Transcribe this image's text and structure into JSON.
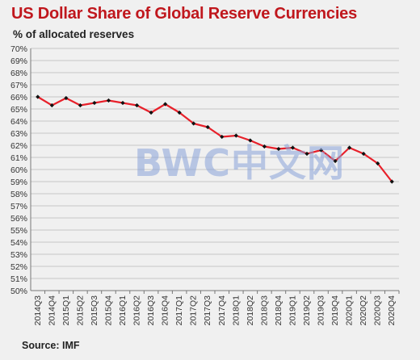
{
  "watermark": "BWC中文网",
  "chart_data": {
    "type": "line",
    "title": "US Dollar Share of Global  Reserve Currencies",
    "subtitle": "% of allocated reserves",
    "source": "Source: IMF",
    "xlabel": "",
    "ylabel": "",
    "ylim": [
      50,
      70
    ],
    "y_ticks": [
      "70%",
      "69%",
      "68%",
      "67%",
      "66%",
      "65%",
      "64%",
      "63%",
      "62%",
      "61%",
      "60%",
      "59%",
      "58%",
      "57%",
      "56%",
      "55%",
      "54%",
      "53%",
      "52%",
      "51%",
      "50%"
    ],
    "grid": true,
    "categories": [
      "2014Q3",
      "2014Q4",
      "2015Q1",
      "2015Q2",
      "2015Q3",
      "2015Q4",
      "2016Q1",
      "2016Q2",
      "2016Q3",
      "2016Q4",
      "2017Q1",
      "2017Q2",
      "2017Q3",
      "2017Q4",
      "2018Q1",
      "2018Q2",
      "2018Q3",
      "2018Q4",
      "2019Q1",
      "2019Q2",
      "2019Q3",
      "2019Q4",
      "2020Q1",
      "2020Q2",
      "2020Q3",
      "2020Q4"
    ],
    "series": [
      {
        "color": "#e8202a",
        "marker_color": "#111111",
        "values": [
          66.0,
          65.3,
          65.9,
          65.3,
          65.5,
          65.7,
          65.5,
          65.3,
          64.7,
          65.4,
          64.7,
          63.8,
          63.5,
          62.7,
          62.8,
          62.4,
          61.9,
          61.7,
          61.8,
          61.3,
          61.6,
          60.7,
          61.8,
          61.3,
          60.5,
          59.0
        ]
      }
    ]
  }
}
